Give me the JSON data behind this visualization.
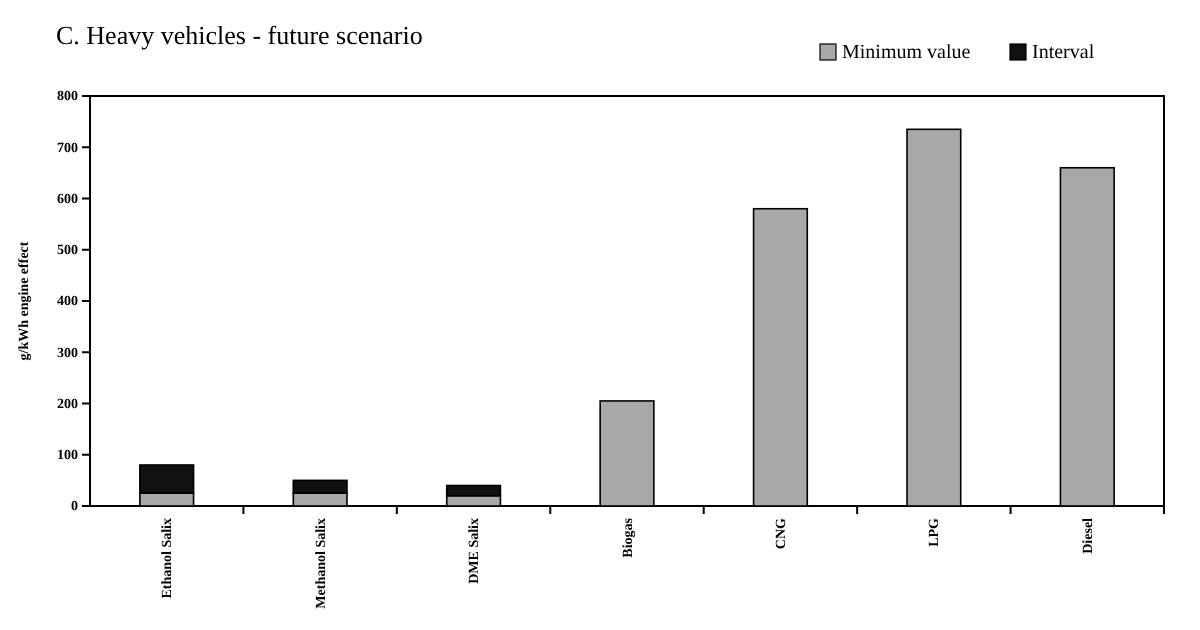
{
  "chart_data": {
    "type": "bar",
    "title": "C. Heavy vehicles - future scenario",
    "ylabel": "g/kWh engine effect",
    "categories": [
      "Ethanol Salix",
      "Methanol Salix",
      "DME Salix",
      "Biogas",
      "CNG",
      "LPG",
      "Diesel"
    ],
    "stacked": true,
    "series": [
      {
        "name": "Minimum value",
        "color": "#a8a8a8",
        "values": [
          25,
          25,
          20,
          205,
          580,
          735,
          660
        ]
      },
      {
        "name": "Interval",
        "color": "#111111",
        "values": [
          55,
          25,
          20,
          0,
          0,
          0,
          0
        ]
      }
    ],
    "ylim": [
      0,
      800
    ],
    "yticks": [
      0,
      100,
      200,
      300,
      400,
      500,
      600,
      700,
      800
    ],
    "grid": false,
    "legend": "top right"
  }
}
